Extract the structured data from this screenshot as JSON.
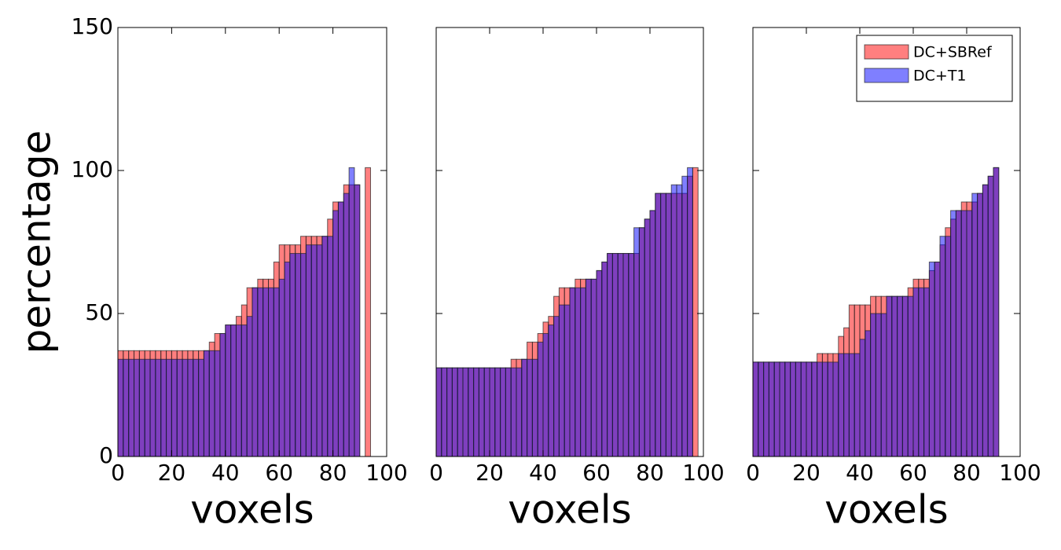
{
  "chart_data": [
    {
      "type": "bar",
      "xlabel": "voxels",
      "ylabel": "percentage",
      "xlim": [
        0,
        100
      ],
      "ylim": [
        0,
        150
      ],
      "xticks": [
        0,
        20,
        40,
        60,
        80,
        100
      ],
      "yticks": [
        0,
        50,
        100,
        150
      ],
      "series": [
        {
          "color": "#ff0000",
          "x": [
            0,
            2,
            4,
            6,
            8,
            10,
            12,
            14,
            16,
            18,
            20,
            22,
            24,
            26,
            28,
            30,
            32,
            34,
            36,
            38,
            40,
            42,
            44,
            46,
            48,
            50,
            52,
            54,
            56,
            58,
            60,
            62,
            64,
            66,
            68,
            70,
            72,
            74,
            76,
            78,
            80,
            82,
            84,
            86,
            88,
            92
          ],
          "values": [
            37,
            37,
            37,
            37,
            37,
            37,
            37,
            37,
            37,
            37,
            37,
            37,
            37,
            37,
            37,
            37,
            37,
            40,
            43,
            43,
            46,
            46,
            49,
            53,
            59,
            59,
            62,
            62,
            62,
            68,
            74,
            74,
            74,
            74,
            77,
            77,
            77,
            77,
            77,
            83,
            89,
            89,
            95,
            95,
            95,
            101
          ]
        },
        {
          "color": "#0000ff",
          "x": [
            0,
            2,
            4,
            6,
            8,
            10,
            12,
            14,
            16,
            18,
            20,
            22,
            24,
            26,
            28,
            30,
            32,
            34,
            36,
            38,
            40,
            42,
            44,
            46,
            48,
            50,
            52,
            54,
            56,
            58,
            60,
            62,
            64,
            66,
            68,
            70,
            72,
            74,
            76,
            78,
            80,
            82,
            84,
            86,
            88
          ],
          "values": [
            34,
            34,
            34,
            34,
            34,
            34,
            34,
            34,
            34,
            34,
            34,
            34,
            34,
            34,
            34,
            34,
            37,
            37,
            37,
            43,
            46,
            46,
            46,
            46,
            49,
            59,
            59,
            59,
            59,
            59,
            62,
            68,
            71,
            71,
            71,
            74,
            74,
            74,
            77,
            77,
            86,
            89,
            92,
            101,
            95
          ]
        }
      ]
    },
    {
      "type": "bar",
      "xlabel": "voxels",
      "xlim": [
        0,
        100
      ],
      "ylim": [
        0,
        150
      ],
      "xticks": [
        0,
        20,
        40,
        60,
        80,
        100
      ],
      "series": [
        {
          "color": "#ff0000",
          "x": [
            0,
            2,
            4,
            6,
            8,
            10,
            12,
            14,
            16,
            18,
            20,
            22,
            24,
            26,
            28,
            30,
            32,
            34,
            36,
            38,
            40,
            42,
            44,
            46,
            48,
            50,
            52,
            54,
            56,
            58,
            60,
            62,
            64,
            66,
            68,
            70,
            72,
            74,
            76,
            78,
            80,
            82,
            84,
            86,
            88,
            90,
            92,
            94,
            96
          ],
          "values": [
            31,
            31,
            31,
            31,
            31,
            31,
            31,
            31,
            31,
            31,
            31,
            31,
            31,
            31,
            34,
            34,
            34,
            40,
            40,
            43,
            47,
            49,
            56,
            59,
            59,
            59,
            62,
            62,
            62,
            62,
            65,
            68,
            71,
            71,
            71,
            71,
            71,
            71,
            80,
            83,
            86,
            92,
            92,
            92,
            92,
            92,
            92,
            98,
            101
          ]
        },
        {
          "color": "#0000ff",
          "x": [
            0,
            2,
            4,
            6,
            8,
            10,
            12,
            14,
            16,
            18,
            20,
            22,
            24,
            26,
            28,
            30,
            32,
            34,
            36,
            38,
            40,
            42,
            44,
            46,
            48,
            50,
            52,
            54,
            56,
            58,
            60,
            62,
            64,
            66,
            68,
            70,
            72,
            74,
            76,
            78,
            80,
            82,
            84,
            86,
            88,
            90,
            92,
            94
          ],
          "values": [
            31,
            31,
            31,
            31,
            31,
            31,
            31,
            31,
            31,
            31,
            31,
            31,
            31,
            31,
            31,
            31,
            34,
            34,
            34,
            40,
            43,
            46,
            49,
            53,
            53,
            59,
            59,
            59,
            62,
            62,
            65,
            68,
            71,
            71,
            71,
            71,
            71,
            80,
            80,
            83,
            86,
            92,
            92,
            92,
            95,
            95,
            98,
            101
          ]
        }
      ]
    },
    {
      "type": "bar",
      "xlabel": "voxels",
      "xlim": [
        0,
        100
      ],
      "ylim": [
        0,
        150
      ],
      "xticks": [
        0,
        20,
        40,
        60,
        80,
        100
      ],
      "legend": "upper right",
      "series": [
        {
          "name": "DC+SBRef",
          "color": "#ff0000",
          "x": [
            0,
            2,
            4,
            6,
            8,
            10,
            12,
            14,
            16,
            18,
            20,
            22,
            24,
            26,
            28,
            30,
            32,
            34,
            36,
            38,
            40,
            42,
            44,
            46,
            48,
            50,
            52,
            54,
            56,
            58,
            60,
            62,
            64,
            66,
            68,
            70,
            72,
            74,
            76,
            78,
            80,
            82,
            84,
            86,
            88,
            90
          ],
          "values": [
            33,
            33,
            33,
            33,
            33,
            33,
            33,
            33,
            33,
            33,
            33,
            33,
            36,
            36,
            36,
            36,
            42,
            45,
            53,
            53,
            53,
            53,
            56,
            56,
            56,
            56,
            56,
            56,
            56,
            59,
            62,
            62,
            62,
            65,
            68,
            74,
            80,
            83,
            86,
            89,
            89,
            89,
            92,
            95,
            98,
            101
          ]
        },
        {
          "name": "DC+T1",
          "color": "#0000ff",
          "x": [
            0,
            2,
            4,
            6,
            8,
            10,
            12,
            14,
            16,
            18,
            20,
            22,
            24,
            26,
            28,
            30,
            32,
            34,
            36,
            38,
            40,
            42,
            44,
            46,
            48,
            50,
            52,
            54,
            56,
            58,
            60,
            62,
            64,
            66,
            68,
            70,
            72,
            74,
            76,
            78,
            80,
            82,
            84,
            86,
            88,
            90
          ],
          "values": [
            33,
            33,
            33,
            33,
            33,
            33,
            33,
            33,
            33,
            33,
            33,
            33,
            33,
            33,
            33,
            33,
            36,
            36,
            36,
            36,
            41,
            44,
            50,
            50,
            50,
            56,
            56,
            56,
            56,
            56,
            59,
            59,
            59,
            68,
            68,
            77,
            77,
            86,
            86,
            86,
            86,
            92,
            92,
            95,
            98,
            101
          ]
        }
      ]
    }
  ]
}
